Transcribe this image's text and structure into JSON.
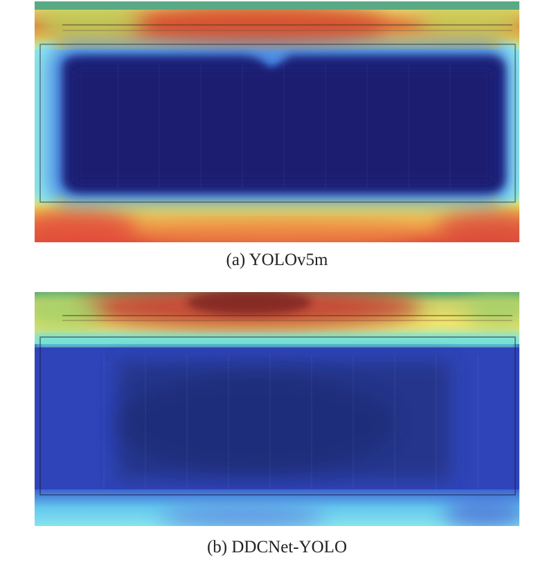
{
  "figure": {
    "panels": [
      {
        "caption": "(a) YOLOv5m",
        "colormap": "jet",
        "description": "heatmap overlay; hot (red/yellow) along top edge and bottom border, cold (dark blue) over interior"
      },
      {
        "caption": "(b) DDCNet-YOLO",
        "colormap": "jet",
        "description": "heatmap overlay; hot (red) concentrated along top edge, cyan/blue along bottom, deep blue interior"
      }
    ]
  },
  "colors": {
    "hot_red": "#d23a2a",
    "orange": "#f08a32",
    "yellow": "#f2ee58",
    "cyan": "#6fe6e6",
    "deep_blue": "#1b1f78",
    "mid_blue": "#2a3fb0",
    "green_band": "#4faa72"
  }
}
